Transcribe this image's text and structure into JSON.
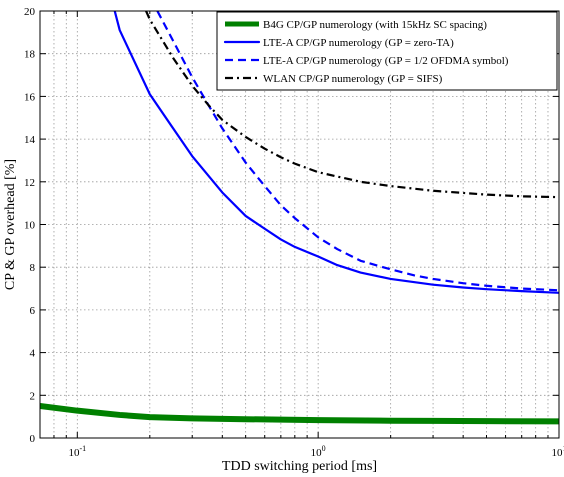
{
  "chart_data": {
    "type": "line",
    "xlabel": "TDD switching period [ms]",
    "ylabel": "CP & GP overhead [%]",
    "xscale": "log",
    "xlim": [
      0.07,
      10
    ],
    "ylim": [
      0,
      20
    ],
    "xticks": [
      {
        "value": 0.1,
        "base": "10",
        "exp": "-1"
      },
      {
        "value": 1,
        "base": "10",
        "exp": "0"
      },
      {
        "value": 10,
        "base": "10",
        "exp": "1"
      }
    ],
    "yticks": [
      "0",
      "2",
      "4",
      "6",
      "8",
      "10",
      "12",
      "14",
      "16",
      "18",
      "20"
    ],
    "grid": true,
    "legend_position": "top-right",
    "series": [
      {
        "name": "B4G CP/GP numerology (with 15kHz SC spacing)",
        "color": "#008000",
        "style": "solid-thick",
        "x": [
          0.07,
          0.1,
          0.15,
          0.2,
          0.3,
          0.5,
          0.7,
          1,
          2,
          3,
          5,
          10
        ],
        "y": [
          1.5,
          1.28,
          1.08,
          0.98,
          0.92,
          0.88,
          0.86,
          0.84,
          0.81,
          0.8,
          0.79,
          0.78
        ]
      },
      {
        "name": "LTE-A CP/GP numerology (GP = zero-TA)",
        "color": "#0000ff",
        "style": "solid",
        "x": [
          0.143,
          0.15,
          0.2,
          0.25,
          0.3,
          0.4,
          0.5,
          0.6,
          0.7,
          0.8,
          1,
          1.2,
          1.5,
          2,
          3,
          4,
          5,
          7,
          10
        ],
        "y": [
          20,
          19.1,
          16.1,
          14.5,
          13.2,
          11.5,
          10.4,
          9.8,
          9.3,
          8.95,
          8.5,
          8.1,
          7.75,
          7.45,
          7.18,
          7.05,
          6.97,
          6.88,
          6.8
        ]
      },
      {
        "name": "LTE-A CP/GP numerology (GP = 1/2 OFDMA symbol)",
        "color": "#0000ff",
        "style": "dashed",
        "x": [
          0.215,
          0.25,
          0.3,
          0.35,
          0.4,
          0.5,
          0.6,
          0.7,
          0.8,
          1,
          1.2,
          1.5,
          2,
          2.5,
          3,
          4,
          5,
          7,
          10
        ],
        "y": [
          20,
          18.6,
          16.9,
          15.6,
          14.5,
          12.9,
          11.8,
          10.9,
          10.3,
          9.4,
          8.85,
          8.3,
          7.9,
          7.62,
          7.45,
          7.25,
          7.13,
          7.0,
          6.92
        ]
      },
      {
        "name": "WLAN CP/GP numerology (GP = SIFS)",
        "color": "#000000",
        "style": "dashdot",
        "x": [
          0.193,
          0.2,
          0.25,
          0.3,
          0.35,
          0.4,
          0.5,
          0.6,
          0.7,
          0.8,
          1,
          1.5,
          2,
          3,
          5,
          7,
          10
        ],
        "y": [
          20,
          19.6,
          17.8,
          16.5,
          15.6,
          14.9,
          14.1,
          13.55,
          13.15,
          12.85,
          12.45,
          12.0,
          11.8,
          11.58,
          11.4,
          11.32,
          11.28
        ]
      }
    ]
  }
}
